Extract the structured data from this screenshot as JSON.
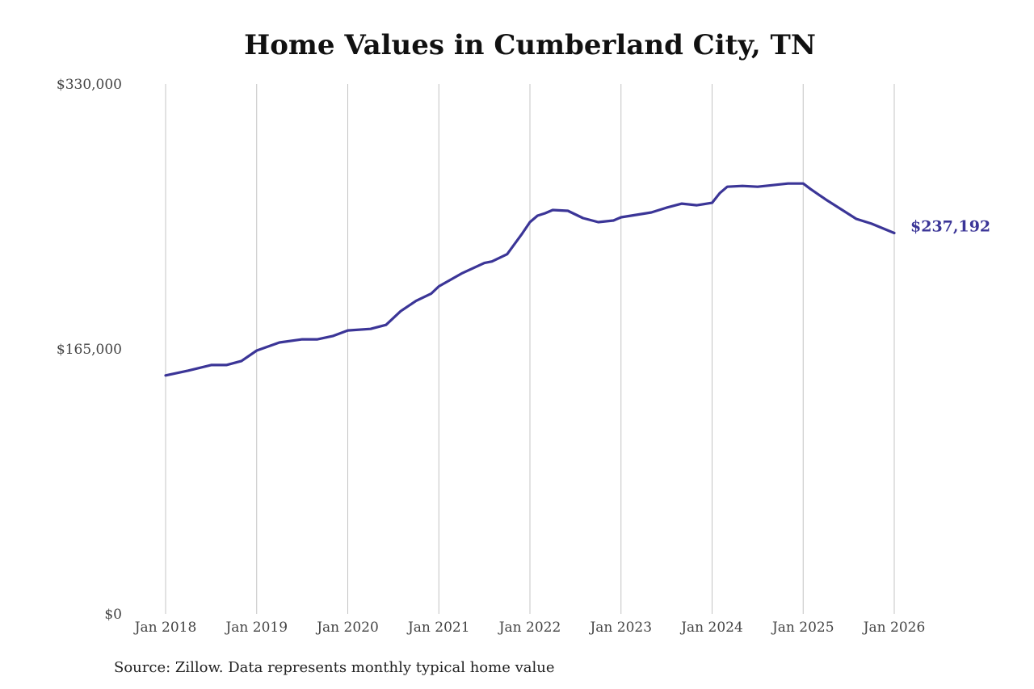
{
  "chart_data": {
    "type": "line",
    "title": "Home Values in Cumberland City, TN",
    "xlabel": "",
    "ylabel": "",
    "ylim": [
      0,
      330000
    ],
    "y_ticks": [
      0,
      165000,
      330000
    ],
    "y_tick_labels": [
      "$0",
      "$165,000",
      "$330,000"
    ],
    "x_ticks": [
      2018,
      2019,
      2020,
      2021,
      2022,
      2023,
      2024,
      2025,
      2026
    ],
    "x_tick_labels": [
      "Jan 2018",
      "Jan 2019",
      "Jan 2020",
      "Jan 2021",
      "Jan 2022",
      "Jan 2023",
      "Jan 2024",
      "Jan 2025",
      "Jan 2026"
    ],
    "grid": "vertical",
    "series": [
      {
        "color": "#3b3597",
        "x": [
          2018.0,
          2018.25,
          2018.5,
          2018.667,
          2018.833,
          2019.0,
          2019.25,
          2019.5,
          2019.667,
          2019.833,
          2020.0,
          2020.25,
          2020.42,
          2020.58,
          2020.75,
          2020.917,
          2021.0,
          2021.25,
          2021.5,
          2021.583,
          2021.75,
          2021.917,
          2022.0,
          2022.083,
          2022.167,
          2022.25,
          2022.417,
          2022.583,
          2022.75,
          2022.917,
          2023.0,
          2023.333,
          2023.5,
          2023.667,
          2023.833,
          2024.0,
          2024.083,
          2024.167,
          2024.333,
          2024.5,
          2024.667,
          2024.833,
          2025.0,
          2025.083,
          2025.25,
          2025.417,
          2025.583,
          2025.75,
          2026.0
        ],
        "y": [
          148500,
          151500,
          155000,
          155000,
          157500,
          164000,
          169000,
          171000,
          171000,
          173000,
          176500,
          177500,
          180000,
          188500,
          195000,
          199500,
          204000,
          212000,
          218500,
          219500,
          224000,
          237000,
          244000,
          248000,
          249500,
          251500,
          251000,
          246500,
          244000,
          245000,
          247000,
          250000,
          253000,
          255500,
          254500,
          256000,
          262000,
          266000,
          266500,
          266000,
          267000,
          268000,
          268000,
          264500,
          258000,
          252000,
          246000,
          243000,
          237192
        ]
      }
    ],
    "annotations": [
      {
        "text": "$237,192",
        "x": 2026.0,
        "y": 237192,
        "color": "#3b3597"
      }
    ],
    "source": "Source: Zillow. Data represents monthly typical home value"
  }
}
